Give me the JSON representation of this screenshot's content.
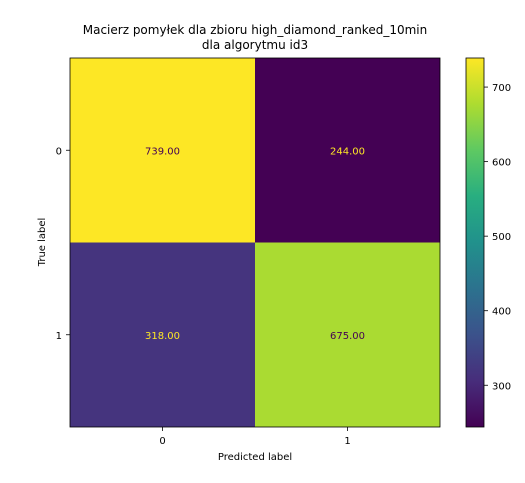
{
  "chart_data": {
    "type": "heatmap",
    "title_lines": [
      "Macierz pomyłek dla zbioru high_diamond_ranked_10min",
      "dla algorytmu id3"
    ],
    "xlabel": "Predicted label",
    "ylabel": "True label",
    "x_categories": [
      "0",
      "1"
    ],
    "y_categories": [
      "0",
      "1"
    ],
    "values": [
      [
        739,
        244
      ],
      [
        318,
        675
      ]
    ],
    "cell_labels": [
      [
        "739.00",
        "244.00"
      ],
      [
        "318.00",
        "675.00"
      ]
    ],
    "colormap": "viridis",
    "colorbar": {
      "range": [
        244,
        739
      ],
      "ticks": [
        300,
        400,
        500,
        600,
        700
      ],
      "tick_labels": [
        "300",
        "400",
        "500",
        "600",
        "700"
      ]
    },
    "label_colors": {
      "on_dark": "#fde725",
      "on_light": "#440154"
    }
  }
}
